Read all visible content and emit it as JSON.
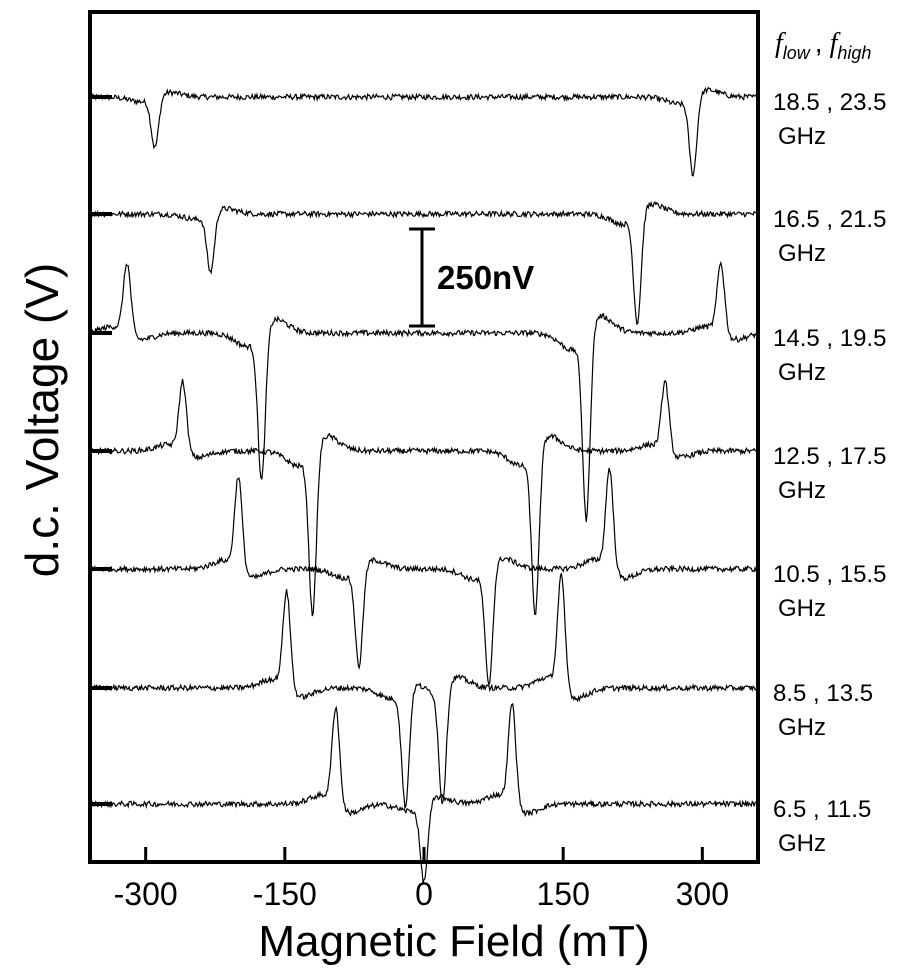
{
  "chart_data": {
    "type": "line",
    "xlabel": "Magnetic Field (mT)",
    "ylabel": "d.c. Voltage (V)",
    "xlim": [
      -360,
      360
    ],
    "x_ticks": [
      -300,
      -150,
      0,
      150,
      300
    ],
    "x_tick_labels": [
      "-300",
      "-150",
      "0",
      "150",
      "300"
    ],
    "y_ticks": "none",
    "grid": false,
    "legend_header": {
      "f": "f",
      "low": "low",
      "sep": ",",
      "high": "high"
    },
    "scale_bar": {
      "label": "250nV",
      "value_nV": 250
    },
    "series": [
      {
        "label_line1": "18.5 , 23.5",
        "label_line2": "GHz",
        "features": [
          {
            "x": -290,
            "amp": -130,
            "w": 4
          },
          {
            "x": 290,
            "amp": -200,
            "w": 4
          }
        ]
      },
      {
        "label_line1": "16.5 , 21.5",
        "label_line2": "GHz",
        "features": [
          {
            "x": -230,
            "amp": -150,
            "w": 4
          },
          {
            "x": 230,
            "amp": -280,
            "w": 4
          }
        ]
      },
      {
        "label_line1": "14.5 , 19.5",
        "label_line2": "GHz",
        "features": [
          {
            "x": -320,
            "amp": 180,
            "w": 4
          },
          {
            "x": -175,
            "amp": -380,
            "w": 4
          },
          {
            "x": 175,
            "amp": -480,
            "w": 4
          },
          {
            "x": 320,
            "amp": 180,
            "w": 4
          }
        ]
      },
      {
        "label_line1": "12.5 , 17.5",
        "label_line2": "GHz",
        "features": [
          {
            "x": -260,
            "amp": 180,
            "w": 4
          },
          {
            "x": -120,
            "amp": -420,
            "w": 4
          },
          {
            "x": 120,
            "amp": -420,
            "w": 4
          },
          {
            "x": 260,
            "amp": 180,
            "w": 4
          }
        ]
      },
      {
        "label_line1": "10.5 , 15.5",
        "label_line2": "GHz",
        "features": [
          {
            "x": -200,
            "amp": 240,
            "w": 4
          },
          {
            "x": -70,
            "amp": -250,
            "w": 4
          },
          {
            "x": 70,
            "amp": -300,
            "w": 4
          },
          {
            "x": 200,
            "amp": 260,
            "w": 4
          }
        ]
      },
      {
        "label_line1": "8.5 , 13.5",
        "label_line2": "GHz",
        "features": [
          {
            "x": -148,
            "amp": 250,
            "w": 4
          },
          {
            "x": -20,
            "amp": -300,
            "w": 4
          },
          {
            "x": 20,
            "amp": -300,
            "w": 4
          },
          {
            "x": 148,
            "amp": 290,
            "w": 4
          }
        ]
      },
      {
        "label_line1": "6.5 , 11.5",
        "label_line2": "GHz",
        "features": [
          {
            "x": -95,
            "amp": 250,
            "w": 4
          },
          {
            "x": 0,
            "amp": -200,
            "w": 4
          },
          {
            "x": 95,
            "amp": 260,
            "w": 4
          }
        ]
      }
    ]
  }
}
